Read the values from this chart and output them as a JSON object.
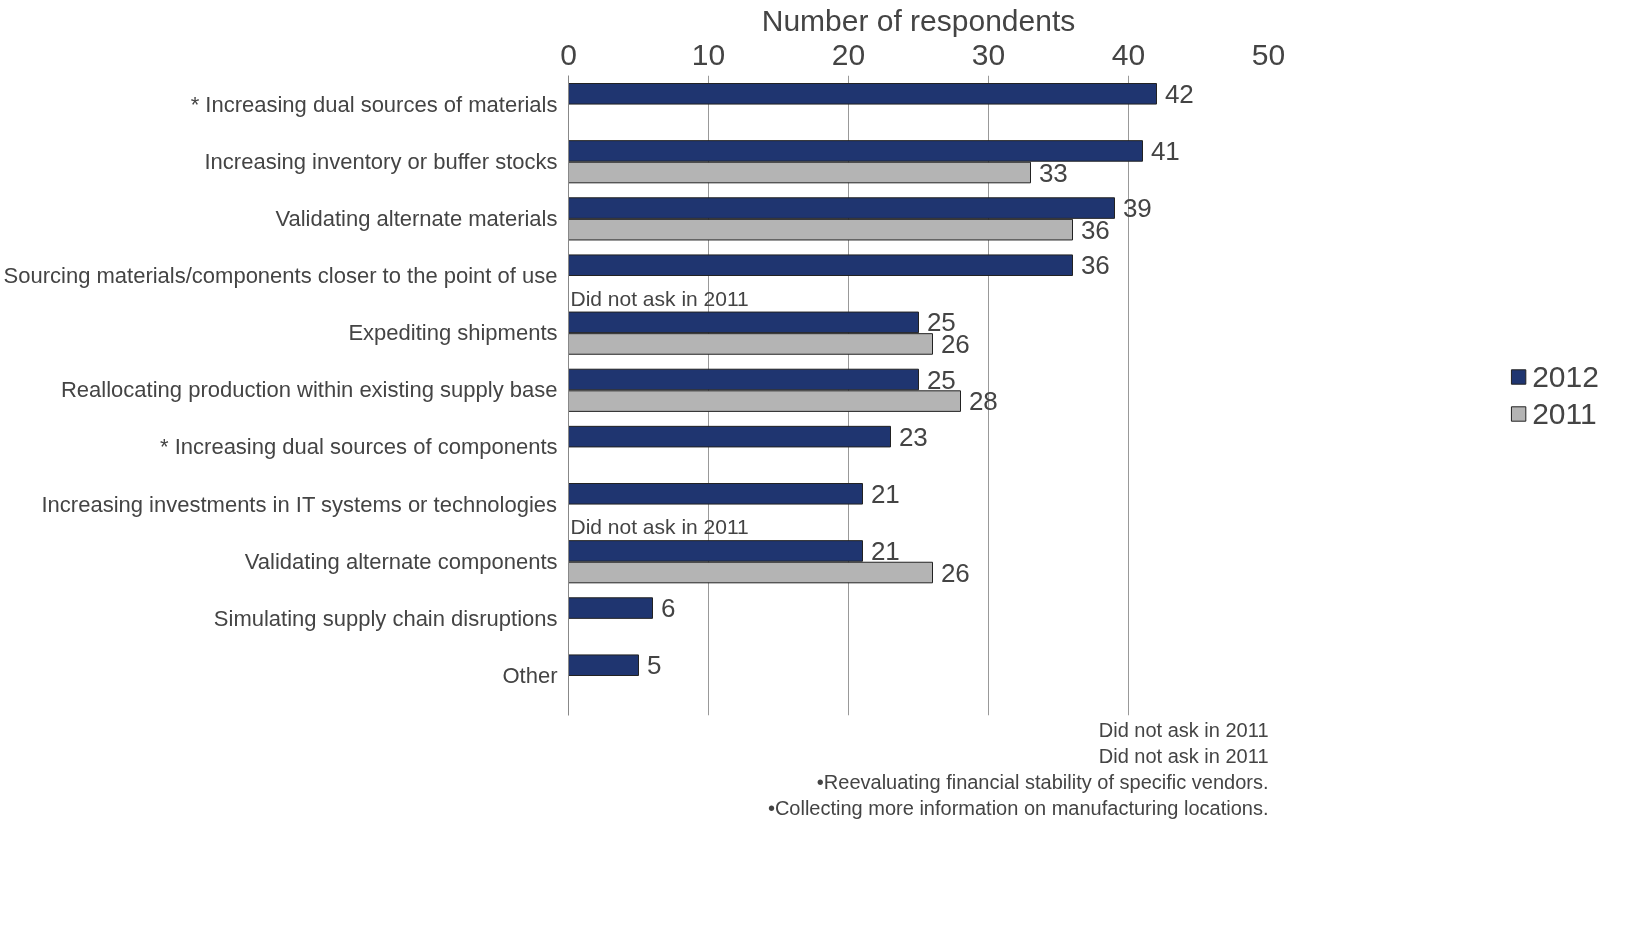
{
  "chart_data": {
    "type": "bar",
    "orientation": "horizontal",
    "xlabel": "Number of respondents",
    "categories": [
      "* Increasing dual sources of materials",
      "Increasing inventory or buffer stocks",
      "Validating alternate materials",
      "Sourcing materials/components closer to the point of use",
      "Expediting shipments",
      "Reallocating production within existing supply base",
      "* Increasing dual sources of components",
      "Increasing investments in IT systems or technologies",
      "Validating alternate components",
      "Simulating supply chain disruptions",
      "Other"
    ],
    "series": [
      {
        "name": "2012",
        "color": "#1f3570",
        "values": [
          42,
          41,
          39,
          36,
          25,
          25,
          23,
          21,
          21,
          6,
          5
        ]
      },
      {
        "name": "2011",
        "color": "#b4b4b4",
        "values": [
          null,
          33,
          36,
          null,
          26,
          28,
          null,
          null,
          26,
          null,
          null
        ]
      }
    ],
    "xlim": [
      0,
      50
    ],
    "xticks": [
      0,
      10,
      20,
      30,
      40,
      50
    ],
    "grid": "x",
    "legend": "right",
    "data_labels": true,
    "annotations": [
      {
        "text": "Did not ask in 2011",
        "y": "Sourcing materials/components closer to the point of use"
      },
      {
        "text": "Did not ask in 2011",
        "y": "Increasing investments in IT systems or technologies"
      },
      "Did not ask in 2011",
      "Did not ask in 2011",
      "•Reevaluating financial stability of specific vendors.",
      "•Collecting more information on manufacturing locations."
    ]
  }
}
